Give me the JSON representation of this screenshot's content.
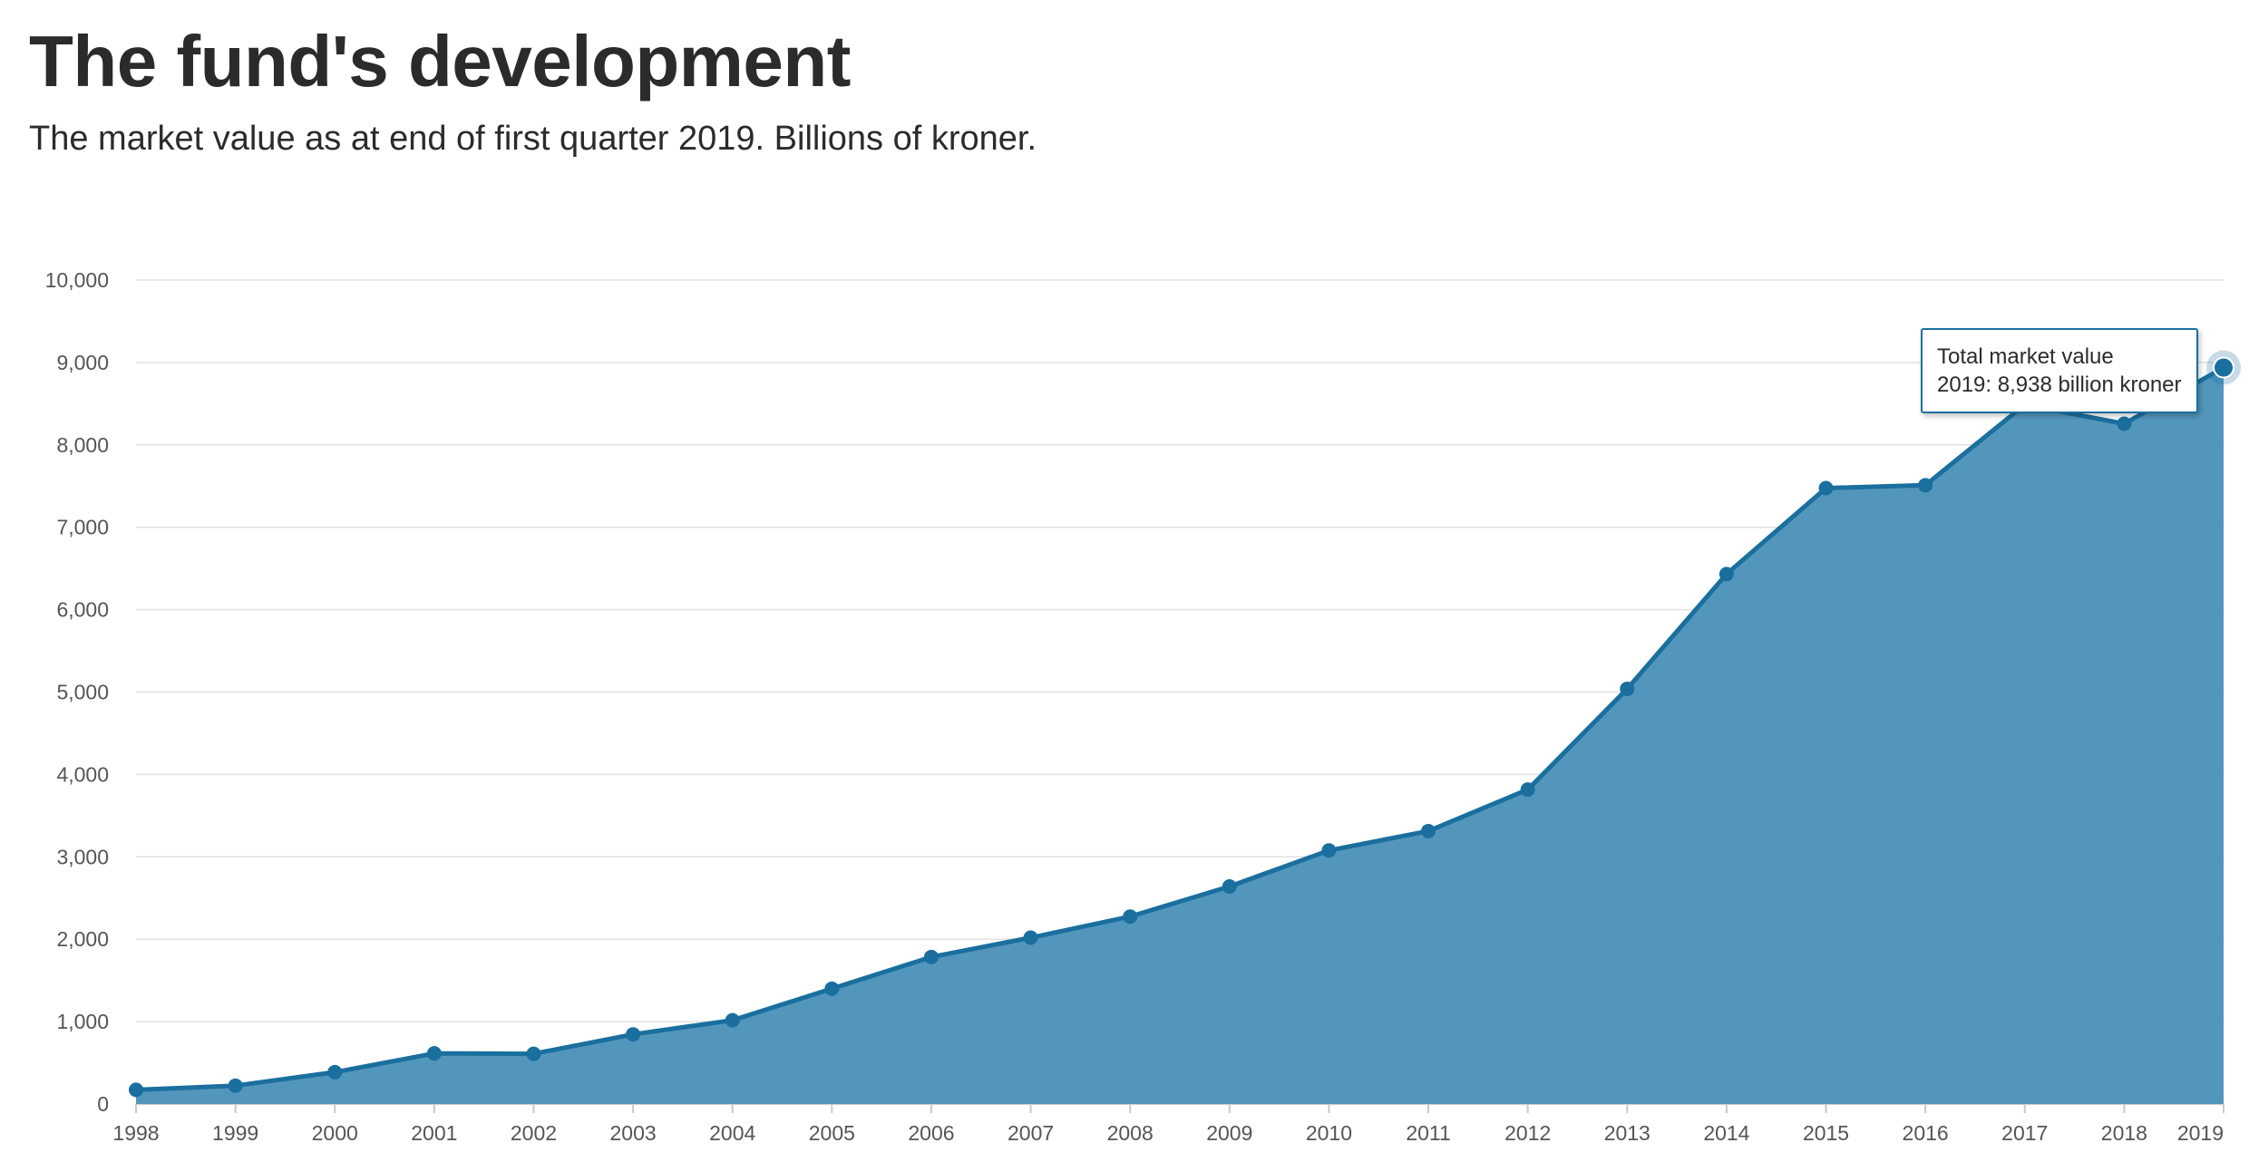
{
  "header": {
    "title": "The fund's development",
    "subtitle": "The market value as at end of first quarter 2019. Billions of kroner."
  },
  "tooltip": {
    "line1": "Total market value",
    "line2": "2019: 8,938 billion kroner"
  },
  "colors": {
    "line": "#1a6f9e",
    "fill": "#4a90b8",
    "grid": "#e2e2e2",
    "tick_text": "#555555"
  },
  "chart_data": {
    "type": "area",
    "title": "The fund's development",
    "subtitle": "The market value as at end of first quarter 2019. Billions of kroner.",
    "xlabel": "",
    "ylabel": "",
    "ylim": [
      0,
      10000
    ],
    "yticks": [
      0,
      1000,
      2000,
      3000,
      4000,
      5000,
      6000,
      7000,
      8000,
      9000,
      10000
    ],
    "ytick_labels": [
      "0",
      "1,000",
      "2,000",
      "3,000",
      "4,000",
      "5,000",
      "6,000",
      "7,000",
      "8,000",
      "9,000",
      "10,000"
    ],
    "grid": true,
    "legend": "none",
    "categories": [
      "1998",
      "1999",
      "2000",
      "2001",
      "2002",
      "2003",
      "2004",
      "2005",
      "2006",
      "2007",
      "2008",
      "2009",
      "2010",
      "2011",
      "2012",
      "2013",
      "2014",
      "2015",
      "2016",
      "2017",
      "2018",
      "2019"
    ],
    "series": [
      {
        "values": [
          172,
          222,
          386,
          614,
          609,
          845,
          1016,
          1399,
          1784,
          2019,
          2275,
          2640,
          3077,
          3312,
          3816,
          5038,
          6431,
          7475,
          7510,
          8488,
          8256,
          8938
        ]
      }
    ],
    "highlighted_point": {
      "category": "2019",
      "value": 8938
    }
  }
}
